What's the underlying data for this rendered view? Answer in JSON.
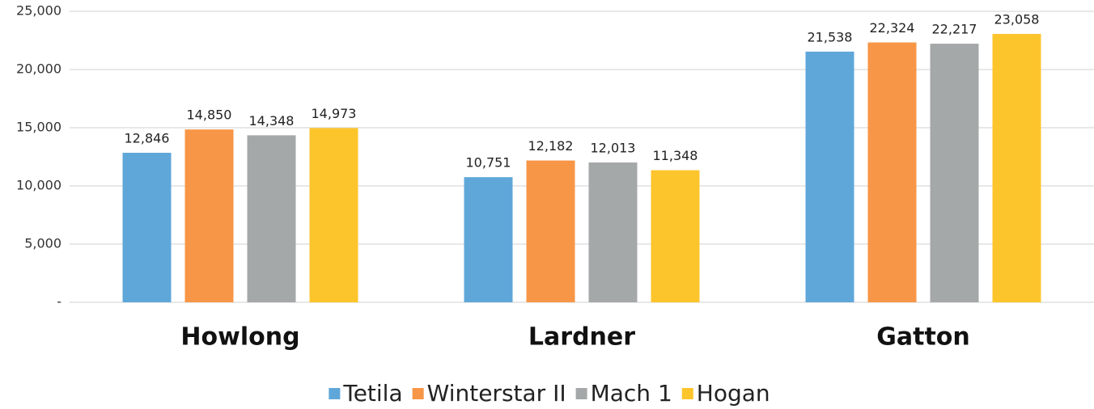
{
  "chart_data": {
    "type": "bar",
    "categories": [
      "Howlong",
      "Lardner",
      "Gatton"
    ],
    "series": [
      {
        "name": "Tetila",
        "color": "#5fa7d9",
        "values": [
          12846,
          10751,
          21538
        ],
        "value_labels": [
          "12,846",
          "10,751",
          "21,538"
        ]
      },
      {
        "name": "Winterstar II",
        "color": "#f79646",
        "values": [
          14850,
          12182,
          22324
        ],
        "value_labels": [
          "14,850",
          "12,182",
          "22,324"
        ]
      },
      {
        "name": "Mach 1",
        "color": "#a5a8a8",
        "values": [
          14348,
          12013,
          22217
        ],
        "value_labels": [
          "14,348",
          "12,013",
          "22,217"
        ]
      },
      {
        "name": "Hogan",
        "color": "#fdc52c",
        "values": [
          14973,
          11348,
          23058
        ],
        "value_labels": [
          "14,973",
          "11,348",
          "23,058"
        ]
      }
    ],
    "ylim": [
      0,
      25000
    ],
    "yticks": [
      {
        "value": 0,
        "label": "-"
      },
      {
        "value": 5000,
        "label": "5,000"
      },
      {
        "value": 10000,
        "label": "10,000"
      },
      {
        "value": 15000,
        "label": "15,000"
      },
      {
        "value": 20000,
        "label": "20,000"
      },
      {
        "value": 25000,
        "label": "25,000"
      }
    ],
    "grid": true,
    "legend": "bottom"
  }
}
